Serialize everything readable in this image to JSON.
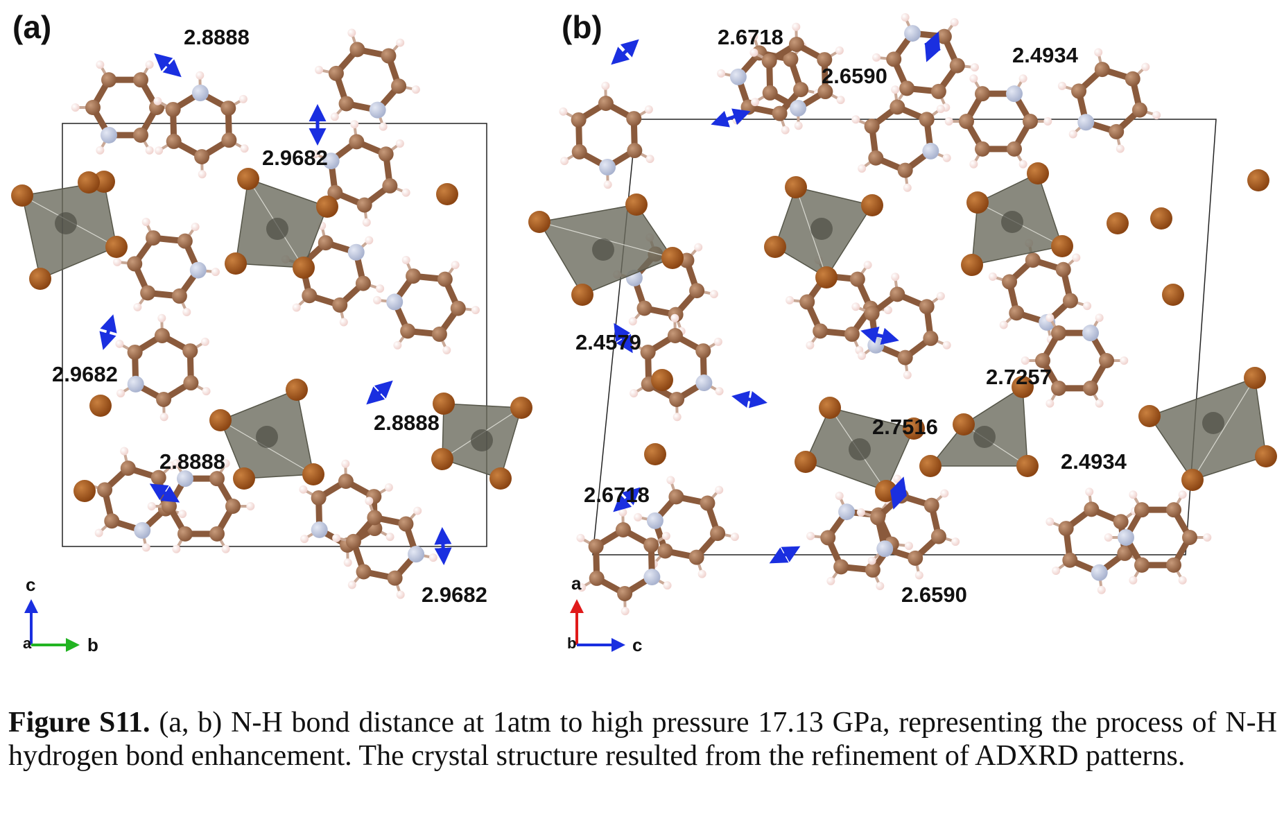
{
  "figure": {
    "panels": [
      {
        "label": "(a)",
        "distances": [
          "2.8888",
          "2.9682",
          "2.9682",
          "2.8888",
          "2.8888",
          "2.9682"
        ],
        "axes": {
          "vertical": "c",
          "horizontal": "b",
          "origin": "a"
        }
      },
      {
        "label": "(b)",
        "distances": [
          "2.6718",
          "2.6590",
          "2.4934",
          "2.4579",
          "2.7257",
          "2.7516",
          "2.6718",
          "2.4934",
          "2.6590"
        ],
        "axes": {
          "vertical": "a",
          "horizontal": "c",
          "origin": "b"
        }
      }
    ],
    "caption": {
      "label": "Figure S11.",
      "text": " (a, b) N-H bond distance at 1atm to high pressure 17.13 GPa, representing the process of N-H hydrogen bond enhancement. The crystal structure resulted from the refinement of ADXRD patterns."
    },
    "colors": {
      "carbon": "#8a5a3c",
      "nitrogen": "#a9b3cf",
      "hydrogen": "#f0d3cf",
      "bromine": "#8b4513",
      "polyhedron": "#6b6b5e",
      "arrow": "#1a2fe0",
      "axis_c": "#1a2fe0",
      "axis_b": "#22b422",
      "axis_a": "#e01a1a"
    }
  }
}
